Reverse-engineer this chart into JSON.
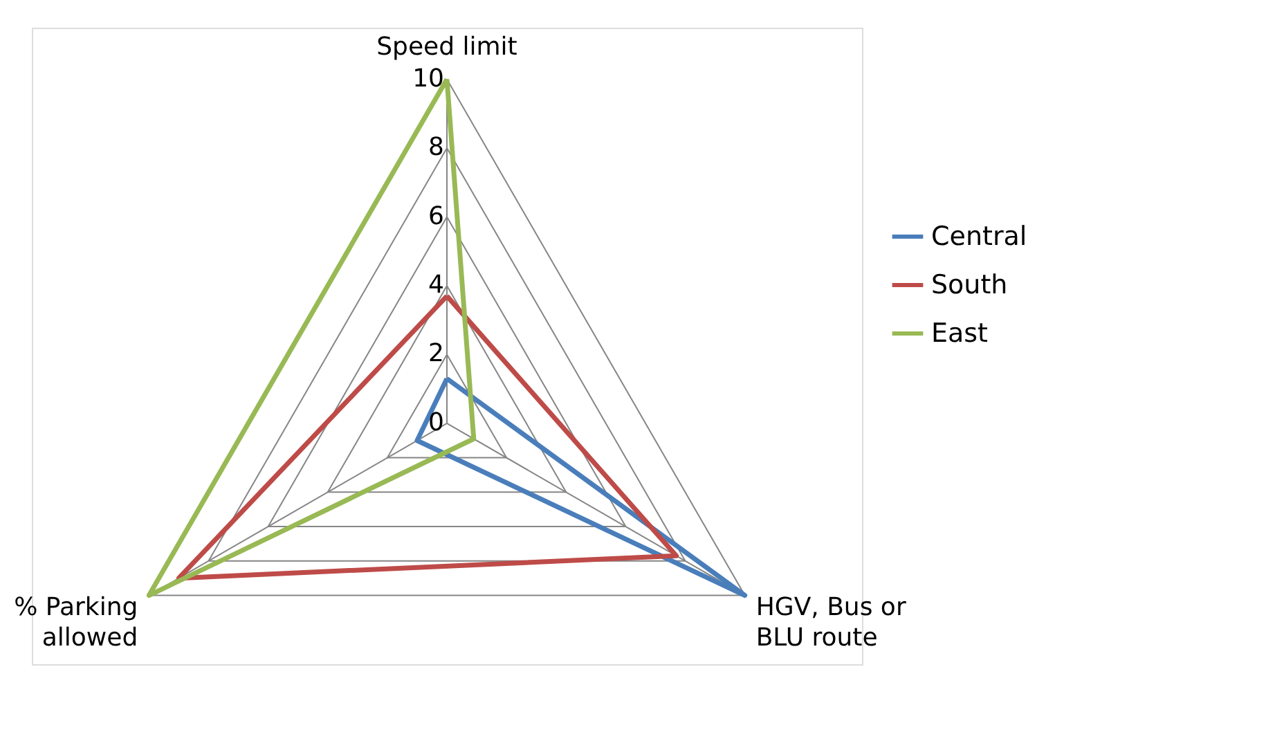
{
  "chart_data": {
    "type": "radar",
    "categories": [
      "Speed limit",
      "HGV, Bus or\nBLU route",
      "% Parking\nallowed"
    ],
    "series": [
      {
        "name": "Central",
        "color": "#4a7ebb",
        "values": [
          1.3,
          10,
          1.0
        ]
      },
      {
        "name": "South",
        "color": "#be4b48",
        "values": [
          3.7,
          7.7,
          9
        ]
      },
      {
        "name": "East",
        "color": "#98b954",
        "values": [
          10,
          0.9,
          10
        ]
      }
    ],
    "ylim": [
      0,
      10
    ],
    "yticks": [
      0,
      2,
      4,
      6,
      8,
      10
    ],
    "grid": true,
    "legend": "right"
  }
}
